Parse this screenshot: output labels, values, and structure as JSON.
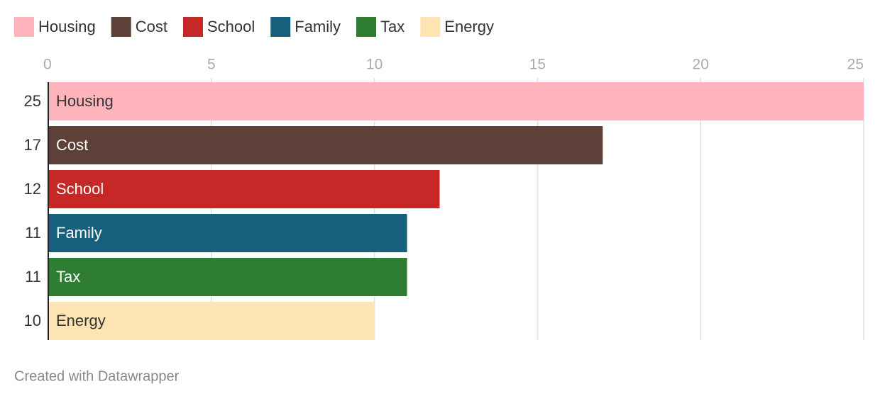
{
  "chart_data": {
    "type": "bar",
    "orientation": "horizontal",
    "categories": [
      "Housing",
      "Cost",
      "School",
      "Family",
      "Tax",
      "Energy"
    ],
    "values": [
      25,
      17,
      12,
      11,
      11,
      10
    ],
    "colors": [
      "#ffb3ba",
      "#5d4037",
      "#c62828",
      "#17607d",
      "#2e7d32",
      "#ffe4b3"
    ],
    "xlim": [
      0,
      25
    ],
    "xticks": [
      0,
      5,
      10,
      15,
      20,
      25
    ],
    "grid": true,
    "legend": "top-left",
    "credit": "Created with Datawrapper"
  }
}
